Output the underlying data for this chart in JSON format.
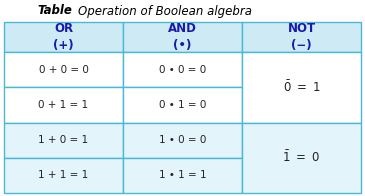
{
  "title_bold": "Table",
  "title_italic": "Operation of Boolean algebra",
  "header_bg": "#ceeaf5",
  "row_bg_white": "#ffffff",
  "row_bg_blue": "#e4f4fb",
  "border_color": "#4ab8d8",
  "header_text_color": "#1a1aaa",
  "body_text_color": "#222222",
  "col_headers": [
    "OR\n(+)",
    "AND\n(•)",
    "NOT\n(−)"
  ],
  "or_rows": [
    "0 + 0 = 0",
    "0 + 1 = 1",
    "1 + 0 = 1",
    "1 + 1 = 1"
  ],
  "and_rows": [
    "0 • 0 = 0",
    "0 • 1 = 0",
    "1 • 0 = 0",
    "1 • 1 = 1"
  ],
  "fig_width": 3.65,
  "fig_height": 1.96,
  "dpi": 100
}
